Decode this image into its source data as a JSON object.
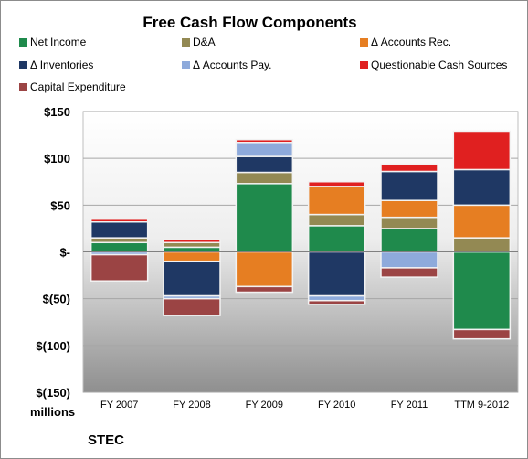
{
  "chart_data": {
    "type": "bar",
    "stacked": true,
    "title": "Free Cash Flow Components",
    "ylabel": "millions",
    "company": "STEC",
    "categories": [
      "FY 2007",
      "FY 2008",
      "FY 2009",
      "FY 2010",
      "FY 2011",
      "TTM 9-2012"
    ],
    "ylim": [
      -150,
      150
    ],
    "yticks": [
      150,
      100,
      50,
      0,
      -50,
      -100,
      -150
    ],
    "ytick_labels": [
      "$150",
      "$100",
      "$50",
      "$-",
      "$(50)",
      "$(100)",
      "$(150)"
    ],
    "legend_position": "top",
    "gridlines": true,
    "series": [
      {
        "name": "Net Income",
        "color": "#1f8a4c",
        "values": [
          10,
          5,
          73,
          28,
          25,
          -83
        ]
      },
      {
        "name": "D&A",
        "color": "#938953",
        "values": [
          5,
          5,
          12,
          12,
          12,
          15
        ]
      },
      {
        "name": "Δ Accounts Rec.",
        "color": "#e67e22",
        "values": [
          0,
          -10,
          -37,
          30,
          18,
          35
        ]
      },
      {
        "name": "Δ Inventories",
        "color": "#1f3864",
        "values": [
          17,
          -37,
          17,
          -47,
          31,
          38
        ]
      },
      {
        "name": "Δ Accounts Pay.",
        "color": "#8eaadb",
        "values": [
          -3,
          -3,
          15,
          -5,
          -17,
          0
        ]
      },
      {
        "name": "Questionable Cash Sources",
        "color": "#e02020",
        "values": [
          3,
          3,
          3,
          5,
          8,
          41
        ]
      },
      {
        "name": "Capital Expenditure",
        "color": "#9b4444",
        "values": [
          -28,
          -18,
          -6,
          -4,
          -10,
          -10
        ]
      }
    ]
  }
}
